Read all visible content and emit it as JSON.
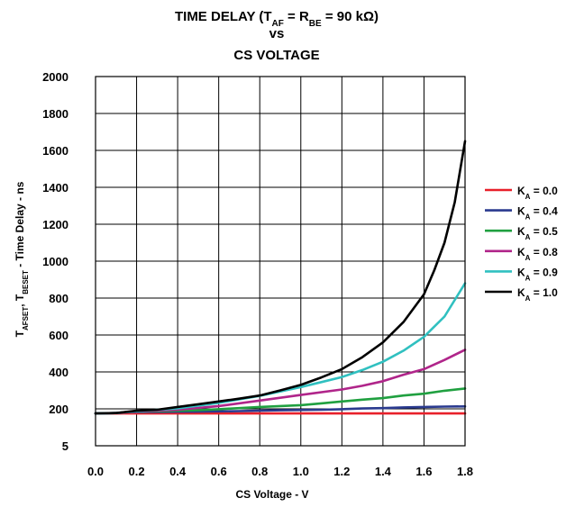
{
  "chart_data": {
    "type": "line",
    "title": {
      "line1": {
        "a": "TIME DELAY (T",
        "a_sub": "AF",
        "b": " = R",
        "b_sub": "BE",
        "c": " = 90 kΩ)"
      },
      "line2": "vs",
      "line3": "CS VOLTAGE"
    },
    "xlabel": "CS Voltage - V",
    "ylabel": {
      "p1": "T",
      "p1_sub": "AFSET",
      "p2": ", T",
      "p2_sub": "BESET",
      "p3": " - Time Delay - ns"
    },
    "xlim": [
      0,
      1.8
    ],
    "x_ticks": [
      "0.0",
      "0.2",
      "0.4",
      "0.6",
      "0.8",
      "1.0",
      "1.2",
      "1.4",
      "1.6",
      "1.8"
    ],
    "y_ticks": [
      "5",
      "200",
      "400",
      "600",
      "800",
      "1000",
      "1200",
      "1400",
      "1600",
      "1800",
      "2000"
    ],
    "y_tick_values": [
      0,
      200,
      400,
      600,
      800,
      1000,
      1200,
      1400,
      1600,
      1800,
      2000
    ],
    "y_note": "The lowest tick is printed as 5 but sits one grid division below 200.",
    "ylim": [
      0,
      2000
    ],
    "grid": true,
    "legend_position": "right",
    "legend_prefix": "K",
    "legend_sub": "A",
    "series": [
      {
        "name": "0.0",
        "color": "#e8202a",
        "x": [
          0.0,
          0.2,
          0.6,
          1.0,
          1.4,
          1.8
        ],
        "y": [
          175,
          175,
          175,
          175,
          175,
          175
        ]
      },
      {
        "name": "0.4",
        "color": "#2a3a8f",
        "x": [
          0.0,
          0.1,
          0.15,
          0.3,
          0.5,
          0.7,
          0.9,
          1.1,
          1.2,
          1.3,
          1.4,
          1.5,
          1.6,
          1.7,
          1.8
        ],
        "y": [
          175,
          177,
          182,
          183,
          185,
          188,
          192,
          195,
          198,
          202,
          204,
          208,
          210,
          212,
          213
        ]
      },
      {
        "name": "0.5",
        "color": "#20a040",
        "x": [
          0.0,
          0.1,
          0.15,
          0.3,
          0.5,
          0.6,
          0.8,
          1.0,
          1.1,
          1.2,
          1.3,
          1.4,
          1.5,
          1.6,
          1.7,
          1.8
        ],
        "y": [
          175,
          177,
          183,
          187,
          193,
          198,
          210,
          220,
          230,
          240,
          250,
          258,
          272,
          282,
          298,
          310
        ]
      },
      {
        "name": "0.8",
        "color": "#b0258a",
        "x": [
          0.0,
          0.1,
          0.2,
          0.4,
          0.6,
          0.8,
          1.0,
          1.2,
          1.3,
          1.4,
          1.5,
          1.6,
          1.7,
          1.8
        ],
        "y": [
          175,
          177,
          185,
          195,
          215,
          245,
          275,
          305,
          325,
          350,
          385,
          415,
          465,
          520
        ]
      },
      {
        "name": "0.9",
        "color": "#30c0c0",
        "x": [
          0.0,
          0.1,
          0.2,
          0.4,
          0.6,
          0.8,
          1.0,
          1.1,
          1.2,
          1.3,
          1.4,
          1.5,
          1.6,
          1.7,
          1.8
        ],
        "y": [
          175,
          177,
          187,
          203,
          232,
          270,
          318,
          345,
          372,
          410,
          455,
          515,
          590,
          700,
          880
        ]
      },
      {
        "name": "1.0",
        "color": "#000000",
        "x": [
          0.0,
          0.1,
          0.2,
          0.3,
          0.4,
          0.5,
          0.6,
          0.7,
          0.8,
          0.9,
          1.0,
          1.1,
          1.2,
          1.3,
          1.4,
          1.5,
          1.6,
          1.65,
          1.7,
          1.75,
          1.8
        ],
        "y": [
          175,
          177,
          190,
          195,
          210,
          225,
          240,
          255,
          272,
          300,
          330,
          370,
          415,
          480,
          560,
          670,
          820,
          950,
          1100,
          1320,
          1650
        ]
      }
    ]
  }
}
